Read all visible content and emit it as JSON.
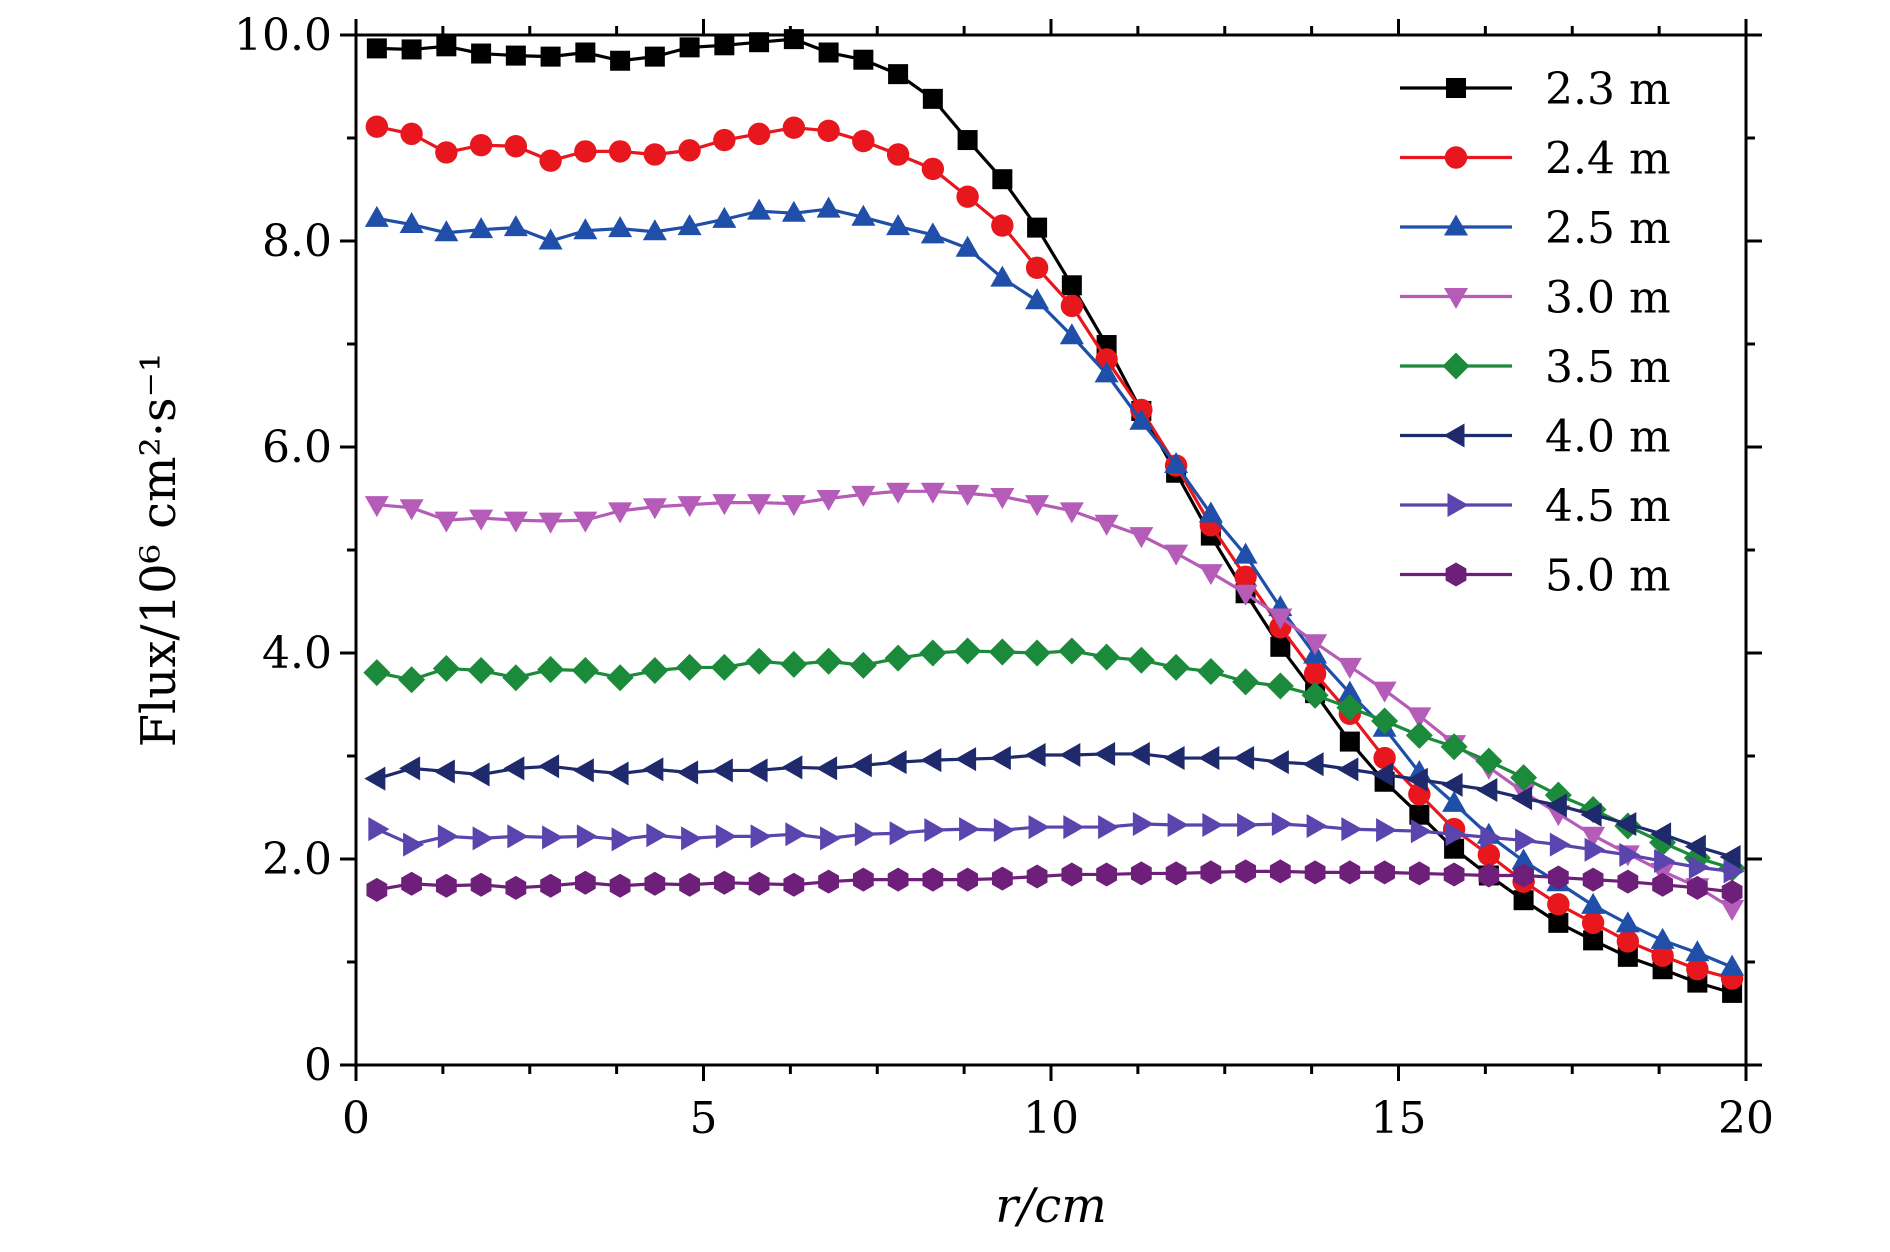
{
  "chart_data": {
    "type": "line",
    "xlabel": "r/cm",
    "ylabel": "Flux/10⁶ cm²·s⁻¹",
    "xlim": [
      0,
      20
    ],
    "ylim": [
      0,
      10
    ],
    "xticks": [
      0,
      5,
      10,
      15,
      20
    ],
    "xtick_labels": [
      "0",
      "5",
      "10",
      "15",
      "20"
    ],
    "yticks": [
      0,
      2,
      4,
      6,
      8,
      10
    ],
    "ytick_labels": [
      "0",
      "2.0",
      "4.0",
      "6.0",
      "8.0",
      "10.0"
    ],
    "grid": false,
    "legend_position": "top-right",
    "x": [
      0.3,
      0.8,
      1.3,
      1.8,
      2.3,
      2.8,
      3.3,
      3.8,
      4.3,
      4.8,
      5.3,
      5.8,
      6.3,
      6.8,
      7.3,
      7.8,
      8.3,
      8.8,
      9.3,
      9.8,
      10.3,
      10.8,
      11.3,
      11.8,
      12.3,
      12.8,
      13.3,
      13.8,
      14.3,
      14.8,
      15.3,
      15.8,
      16.3,
      16.8,
      17.3,
      17.8,
      18.3,
      18.8,
      19.3,
      19.8
    ],
    "series": [
      {
        "name": "2.3 m",
        "color": "#000000",
        "marker": "square",
        "values": [
          9.87,
          9.86,
          9.89,
          9.82,
          9.8,
          9.79,
          9.83,
          9.75,
          9.79,
          9.88,
          9.9,
          9.93,
          9.96,
          9.83,
          9.76,
          9.62,
          9.38,
          8.98,
          8.6,
          8.13,
          7.57,
          6.99,
          6.35,
          5.75,
          5.14,
          4.58,
          4.06,
          3.61,
          3.14,
          2.75,
          2.43,
          2.1,
          1.84,
          1.6,
          1.38,
          1.21,
          1.05,
          0.93,
          0.8,
          0.7
        ]
      },
      {
        "name": "2.4 m",
        "color": "#e8161d",
        "marker": "circle",
        "values": [
          9.11,
          9.04,
          8.86,
          8.93,
          8.92,
          8.78,
          8.87,
          8.87,
          8.84,
          8.88,
          8.98,
          9.04,
          9.1,
          9.07,
          8.97,
          8.84,
          8.7,
          8.43,
          8.15,
          7.74,
          7.37,
          6.85,
          6.36,
          5.82,
          5.24,
          4.74,
          4.25,
          3.8,
          3.41,
          2.98,
          2.63,
          2.29,
          2.04,
          1.78,
          1.56,
          1.38,
          1.2,
          1.06,
          0.93,
          0.84
        ]
      },
      {
        "name": "2.5 m",
        "color": "#1f4fa8",
        "marker": "triangle-up",
        "values": [
          8.22,
          8.16,
          8.08,
          8.11,
          8.13,
          8.0,
          8.1,
          8.12,
          8.09,
          8.14,
          8.21,
          8.29,
          8.27,
          8.31,
          8.23,
          8.14,
          8.06,
          7.93,
          7.64,
          7.42,
          7.08,
          6.71,
          6.25,
          5.83,
          5.35,
          4.95,
          4.44,
          3.98,
          3.61,
          3.27,
          2.84,
          2.54,
          2.23,
          1.98,
          1.77,
          1.55,
          1.37,
          1.21,
          1.09,
          0.95
        ]
      },
      {
        "name": "3.0 m",
        "color": "#b55bb8",
        "marker": "triangle-down",
        "values": [
          5.44,
          5.41,
          5.29,
          5.31,
          5.29,
          5.28,
          5.29,
          5.38,
          5.42,
          5.44,
          5.46,
          5.46,
          5.45,
          5.5,
          5.54,
          5.57,
          5.57,
          5.55,
          5.52,
          5.45,
          5.38,
          5.26,
          5.14,
          4.97,
          4.78,
          4.58,
          4.35,
          4.1,
          3.87,
          3.64,
          3.39,
          3.12,
          2.89,
          2.65,
          2.44,
          2.23,
          2.05,
          1.88,
          1.73,
          1.52
        ]
      },
      {
        "name": "3.5 m",
        "color": "#1b8a3a",
        "marker": "diamond",
        "values": [
          3.81,
          3.74,
          3.85,
          3.83,
          3.76,
          3.84,
          3.83,
          3.76,
          3.83,
          3.86,
          3.86,
          3.92,
          3.89,
          3.92,
          3.88,
          3.95,
          4.0,
          4.02,
          4.01,
          4.0,
          4.02,
          3.96,
          3.93,
          3.86,
          3.82,
          3.72,
          3.68,
          3.59,
          3.47,
          3.34,
          3.2,
          3.09,
          2.95,
          2.79,
          2.62,
          2.48,
          2.32,
          2.16,
          2.01,
          1.91
        ]
      },
      {
        "name": "4.0 m",
        "color": "#1e2a6b",
        "marker": "triangle-left",
        "values": [
          2.78,
          2.88,
          2.85,
          2.82,
          2.88,
          2.9,
          2.86,
          2.83,
          2.87,
          2.84,
          2.86,
          2.86,
          2.89,
          2.88,
          2.91,
          2.94,
          2.96,
          2.97,
          2.98,
          3.01,
          3.01,
          3.02,
          3.02,
          2.98,
          2.98,
          2.98,
          2.94,
          2.92,
          2.87,
          2.82,
          2.77,
          2.72,
          2.67,
          2.59,
          2.52,
          2.43,
          2.34,
          2.24,
          2.12,
          2.02
        ]
      },
      {
        "name": "4.5 m",
        "color": "#5a44ad",
        "marker": "triangle-right",
        "values": [
          2.29,
          2.14,
          2.22,
          2.2,
          2.22,
          2.21,
          2.22,
          2.19,
          2.23,
          2.2,
          2.22,
          2.22,
          2.24,
          2.2,
          2.24,
          2.25,
          2.28,
          2.29,
          2.28,
          2.31,
          2.31,
          2.31,
          2.34,
          2.33,
          2.33,
          2.33,
          2.34,
          2.32,
          2.29,
          2.28,
          2.27,
          2.24,
          2.21,
          2.18,
          2.14,
          2.09,
          2.04,
          1.98,
          1.92,
          1.88
        ]
      },
      {
        "name": "5.0 m",
        "color": "#6e1f7a",
        "marker": "hexagon",
        "values": [
          1.7,
          1.76,
          1.74,
          1.75,
          1.72,
          1.74,
          1.77,
          1.74,
          1.76,
          1.75,
          1.77,
          1.76,
          1.75,
          1.78,
          1.8,
          1.8,
          1.8,
          1.8,
          1.81,
          1.83,
          1.85,
          1.85,
          1.86,
          1.86,
          1.87,
          1.88,
          1.88,
          1.87,
          1.87,
          1.87,
          1.86,
          1.85,
          1.84,
          1.84,
          1.82,
          1.8,
          1.78,
          1.75,
          1.72,
          1.68
        ]
      }
    ]
  }
}
